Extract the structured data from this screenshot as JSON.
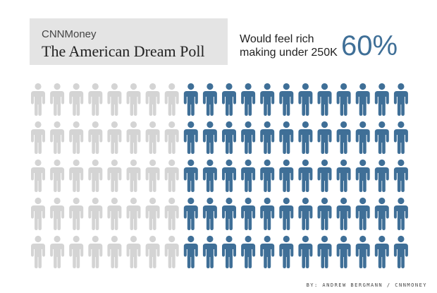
{
  "header": {
    "brand": "CNNMoney",
    "title": "The American Dream Poll"
  },
  "stat": {
    "label_line1": "Would feel rich",
    "label_line2": "making under 250K",
    "value": "60%"
  },
  "credit": "BY: ANDREW BERGMANN / CNNMONEY",
  "colors": {
    "highlight": "#3f6f97",
    "base": "#d4d4d4",
    "title_box": "#e4e4e4"
  },
  "chart_data": {
    "type": "pictogram",
    "icon": "person-icon",
    "rows": 5,
    "columns": 20,
    "total": 100,
    "highlighted": 60,
    "highlighted_value_percent": 60
  }
}
